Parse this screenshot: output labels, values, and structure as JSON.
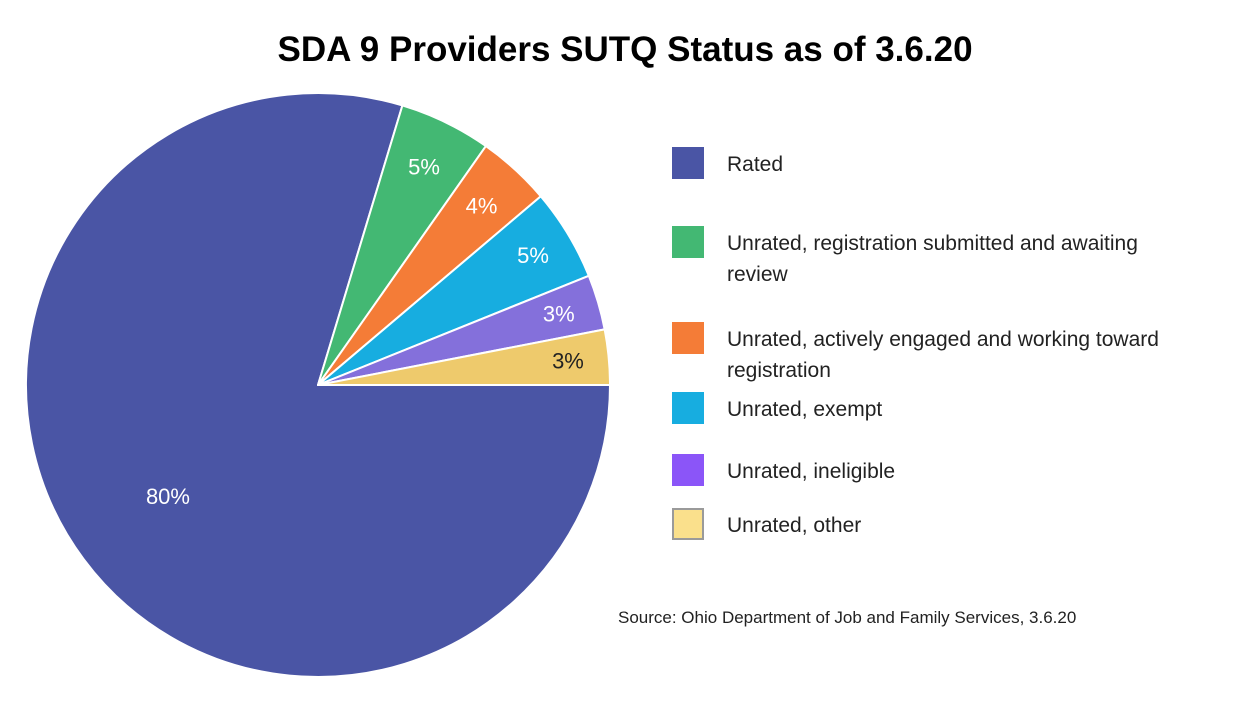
{
  "chart_data": {
    "type": "pie",
    "title": "SDA 9 Providers SUTQ Status as of 3.6.20",
    "categories": [
      "Rated",
      "Unrated, registration submitted and awaiting review",
      "Unrated, actively engaged and working toward registration",
      "Unrated, exempt",
      "Unrated, ineligible",
      "Unrated, other"
    ],
    "values": [
      80,
      5,
      4,
      5,
      3,
      3
    ],
    "value_labels": [
      "80%",
      "5%",
      "4%",
      "5%",
      "3%",
      "3%"
    ],
    "colors": [
      "#4a55a5",
      "#43b873",
      "#f47c37",
      "#17ade0",
      "#8470db",
      "#eeca6c"
    ],
    "label_colors": [
      "#ffffff",
      "#ffffff",
      "#ffffff",
      "#ffffff",
      "#ffffff",
      "#222222"
    ],
    "legend_colors": [
      "#4a55a5",
      "#43b873",
      "#f47c37",
      "#17ade0",
      "#8b55f8",
      "#fae08c"
    ],
    "legend_placement": "right",
    "source": "Source: Ohio Department of Job and Family Services, 3.6.20"
  }
}
